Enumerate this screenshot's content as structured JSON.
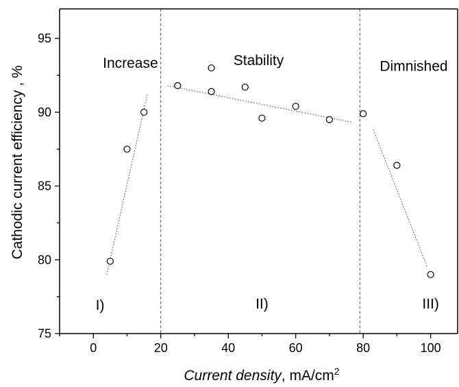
{
  "chart_data": {
    "type": "scatter",
    "xlabel_italic": "Current density",
    "xlabel_rest": ", mA/cm",
    "xlabel_sup": "2",
    "ylabel": "Cathodic current efficiency , %",
    "xlim": [
      -10,
      108
    ],
    "ylim": [
      75,
      97
    ],
    "x_ticks": [
      0,
      20,
      40,
      60,
      80,
      100
    ],
    "y_ticks": [
      75,
      80,
      85,
      90,
      95
    ],
    "grid": false,
    "series": [
      {
        "marker": "open-circle",
        "points": [
          {
            "x": 5,
            "y": 79.9
          },
          {
            "x": 10,
            "y": 87.5
          },
          {
            "x": 15,
            "y": 90.0
          },
          {
            "x": 25,
            "y": 91.8
          },
          {
            "x": 35,
            "y": 93.0
          },
          {
            "x": 35,
            "y": 91.4
          },
          {
            "x": 45,
            "y": 91.7
          },
          {
            "x": 50,
            "y": 89.6
          },
          {
            "x": 60,
            "y": 90.4
          },
          {
            "x": 70,
            "y": 89.5
          },
          {
            "x": 80,
            "y": 89.9
          },
          {
            "x": 90,
            "y": 86.4
          },
          {
            "x": 100,
            "y": 79.0
          }
        ]
      }
    ],
    "trend_lines": [
      {
        "x": [
          4,
          16
        ],
        "y": [
          79.0,
          91.2
        ]
      },
      {
        "x": [
          22,
          77
        ],
        "y": [
          91.8,
          89.3
        ]
      },
      {
        "x": [
          83,
          99
        ],
        "y": [
          88.8,
          79.5
        ]
      }
    ],
    "region_dividers": [
      20,
      79
    ],
    "regions": [
      {
        "title": "Increase",
        "roman": "I)",
        "title_x": 11,
        "title_y": 93.0,
        "roman_x": 2,
        "roman_y": 76.6
      },
      {
        "title": "Stability",
        "roman": "II)",
        "title_x": 49,
        "title_y": 93.2,
        "roman_x": 50,
        "roman_y": 76.7
      },
      {
        "title": "Dimnished",
        "roman": "III)",
        "title_x": 95,
        "title_y": 92.8,
        "roman_x": 100,
        "roman_y": 76.7
      }
    ],
    "line_color": "#555555",
    "marker_color": "#000000"
  }
}
